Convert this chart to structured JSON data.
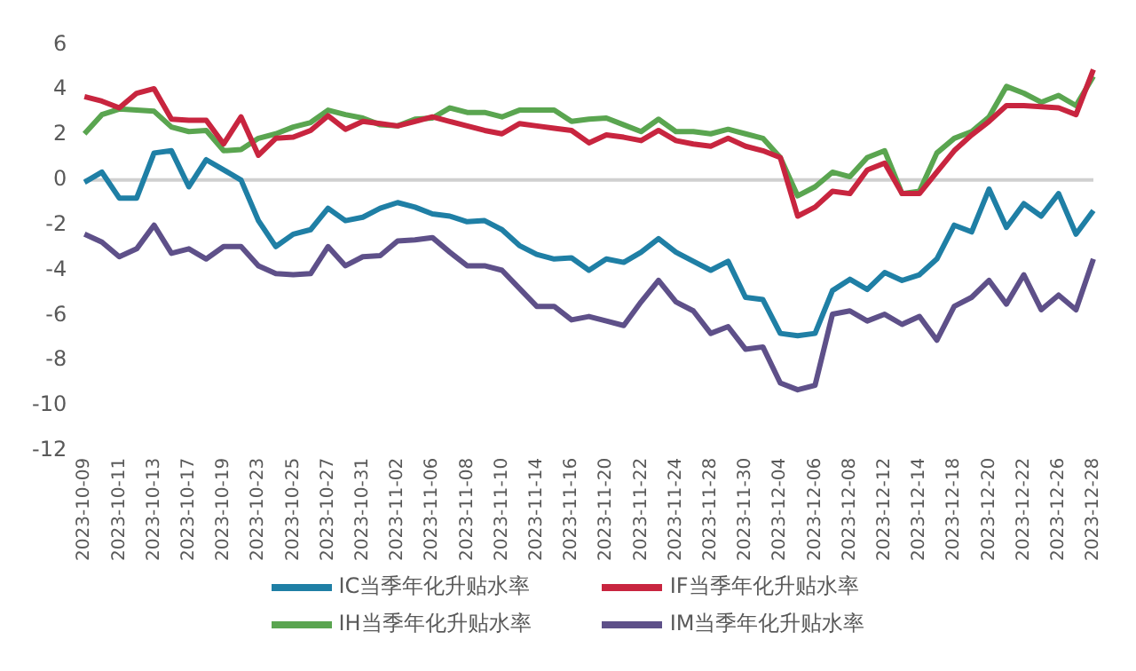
{
  "chart_data": {
    "type": "line",
    "categories": [
      "2023-10-09",
      null,
      "2023-10-11",
      null,
      "2023-10-13",
      null,
      "2023-10-17",
      null,
      "2023-10-19",
      null,
      "2023-10-23",
      null,
      "2023-10-25",
      null,
      "2023-10-27",
      null,
      "2023-10-31",
      null,
      "2023-11-02",
      null,
      "2023-11-06",
      null,
      "2023-11-08",
      null,
      "2023-11-10",
      null,
      "2023-11-14",
      null,
      "2023-11-16",
      null,
      "2023-11-20",
      null,
      "2023-11-22",
      null,
      "2023-11-24",
      null,
      "2023-11-28",
      null,
      "2023-11-30",
      null,
      "2023-12-04",
      null,
      "2023-12-06",
      null,
      "2023-12-08",
      null,
      "2023-12-12",
      null,
      "2023-12-14",
      null,
      "2023-12-18",
      null,
      "2023-12-20",
      null,
      "2023-12-22",
      null,
      "2023-12-26",
      null,
      "2023-12-28"
    ],
    "series": [
      {
        "name": "IC当季年化升贴水率",
        "color": "#1f7fa5",
        "values": [
          -0.1,
          0.35,
          -0.8,
          -0.8,
          1.2,
          1.3,
          -0.3,
          0.9,
          0.45,
          0,
          -1.8,
          -2.95,
          -2.4,
          -2.2,
          -1.25,
          -1.8,
          -1.65,
          -1.25,
          -1.0,
          -1.2,
          -1.5,
          -1.6,
          -1.85,
          -1.8,
          -2.2,
          -2.9,
          -3.3,
          -3.5,
          -3.45,
          -4.0,
          -3.5,
          -3.65,
          -3.2,
          -2.6,
          -3.2,
          -3.6,
          -4.0,
          -3.6,
          -5.2,
          -5.3,
          -6.8,
          -6.9,
          -6.8,
          -4.9,
          -4.4,
          -4.85,
          -4.1,
          -4.45,
          -4.2,
          -3.5,
          -2.0,
          -2.3,
          -0.4,
          -2.1,
          -1.05,
          -1.6,
          -0.6,
          -2.4,
          -1.35
        ]
      },
      {
        "name": "IF当季年化升贴水率",
        "color": "#c8253f",
        "values": [
          3.7,
          3.5,
          3.2,
          3.85,
          4.05,
          2.7,
          2.65,
          2.65,
          1.6,
          2.8,
          1.1,
          1.85,
          1.9,
          2.2,
          2.85,
          2.25,
          2.6,
          2.5,
          2.4,
          2.6,
          2.8,
          2.6,
          2.4,
          2.2,
          2.05,
          2.5,
          2.4,
          2.3,
          2.2,
          1.65,
          2.0,
          1.9,
          1.75,
          2.2,
          1.75,
          1.6,
          1.5,
          1.85,
          1.5,
          1.3,
          1.0,
          -1.6,
          -1.2,
          -0.5,
          -0.6,
          0.45,
          0.75,
          -0.6,
          -0.6,
          0.35,
          1.3,
          2.0,
          2.6,
          3.3,
          3.3,
          3.25,
          3.2,
          2.9,
          4.9
        ]
      },
      {
        "name": "IH当季年化升贴水率",
        "color": "#5aa550",
        "values": [
          2.05,
          2.9,
          3.15,
          3.1,
          3.05,
          2.35,
          2.15,
          2.2,
          1.3,
          1.35,
          1.85,
          2.05,
          2.35,
          2.55,
          3.1,
          2.9,
          2.75,
          2.45,
          2.4,
          2.7,
          2.75,
          3.2,
          3.0,
          3.0,
          2.8,
          3.1,
          3.1,
          3.1,
          2.6,
          2.7,
          2.75,
          2.45,
          2.15,
          2.7,
          2.15,
          2.15,
          2.05,
          2.25,
          2.05,
          1.85,
          1.0,
          -0.7,
          -0.3,
          0.35,
          0.15,
          1.0,
          1.3,
          -0.6,
          -0.5,
          1.2,
          1.85,
          2.15,
          2.8,
          4.15,
          3.85,
          3.45,
          3.75,
          3.3,
          4.6
        ]
      },
      {
        "name": "IM当季年化升贴水率",
        "color": "#5e5089",
        "values": [
          -2.4,
          -2.75,
          -3.4,
          -3.05,
          -2.0,
          -3.25,
          -3.05,
          -3.5,
          -2.95,
          -2.95,
          -3.8,
          -4.15,
          -4.2,
          -4.15,
          -2.95,
          -3.8,
          -3.4,
          -3.35,
          -2.7,
          -2.65,
          -2.55,
          -3.2,
          -3.8,
          -3.8,
          -4.0,
          -4.8,
          -5.6,
          -5.6,
          -6.2,
          -6.05,
          -6.25,
          -6.45,
          -5.4,
          -4.45,
          -5.4,
          -5.8,
          -6.8,
          -6.5,
          -7.5,
          -7.4,
          -9.0,
          -9.3,
          -9.1,
          -5.95,
          -5.8,
          -6.25,
          -5.95,
          -6.4,
          -6.05,
          -7.1,
          -5.6,
          -5.2,
          -4.45,
          -5.5,
          -4.2,
          -5.75,
          -5.1,
          -5.75,
          -3.5
        ]
      }
    ],
    "ylim": [
      -12,
      6
    ],
    "yticks": [
      6,
      4,
      2,
      0,
      -2,
      -4,
      -6,
      -8,
      -10,
      -12
    ],
    "ref_lines": [
      {
        "axis": "y",
        "value": 0,
        "color": "#d0d0d0"
      }
    ],
    "grid": false,
    "legend": "bottom",
    "marker": "none",
    "line_style": "solid"
  }
}
